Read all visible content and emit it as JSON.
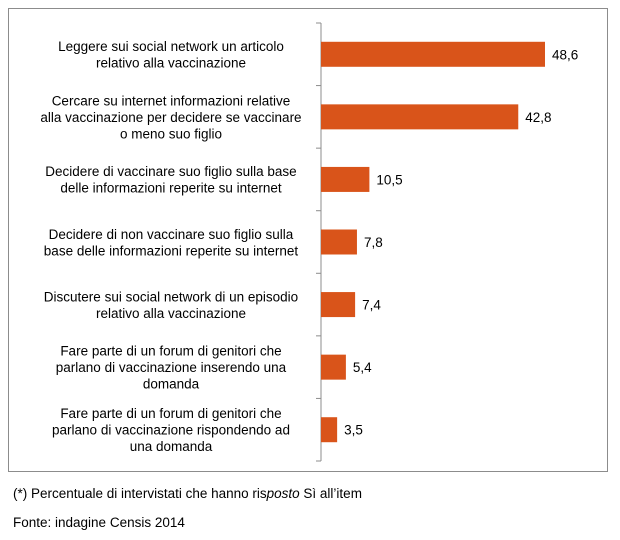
{
  "chart_data": {
    "type": "bar",
    "orientation": "horizontal",
    "title": "",
    "xlabel": "",
    "ylabel": "",
    "xlim": [
      0,
      55
    ],
    "grid": false,
    "categories": [
      [
        "Leggere sui social network un articolo",
        "relativo alla vaccinazione"
      ],
      [
        "Cercare su internet informazioni relative",
        "alla vaccinazione per decidere se vaccinare",
        "o meno suo figlio"
      ],
      [
        "Decidere di vaccinare suo figlio sulla base",
        "delle informazioni reperite su internet"
      ],
      [
        "Decidere di non vaccinare suo figlio sulla",
        "base delle informazioni reperite su internet"
      ],
      [
        "Discutere sui social network di un episodio",
        "relativo alla vaccinazione"
      ],
      [
        "Fare parte di un forum di genitori che",
        "parlano di vaccinazione inserendo una",
        "domanda"
      ],
      [
        "Fare parte di un forum di genitori che",
        "parlano di vaccinazione rispondendo ad",
        "una domanda"
      ]
    ],
    "values": [
      48.6,
      42.8,
      10.5,
      7.8,
      7.4,
      5.4,
      3.5
    ],
    "value_labels": [
      "48,6",
      "42,8",
      "10,5",
      "7,8",
      "7,4",
      "5,4",
      "3,5"
    ],
    "bar_color": "#d9541a"
  },
  "notes": {
    "footnote_prefix": "(*) Percentuale di intervistati che hanno ris",
    "footnote_italic": "posto",
    "footnote_suffix": " Sì all’item",
    "source": "Fonte: indagine Censis 2014"
  }
}
